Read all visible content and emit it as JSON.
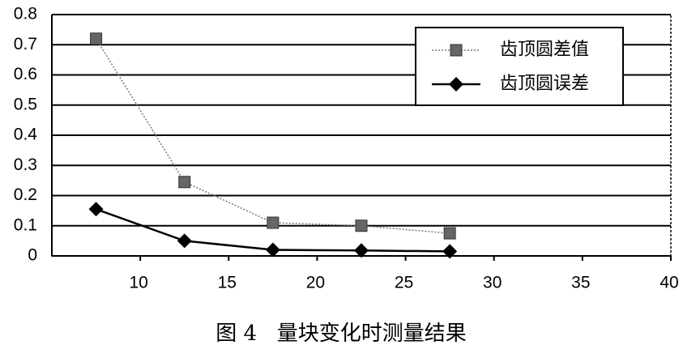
{
  "chart_data": {
    "type": "line",
    "caption": "图 4   量块变化时测量结果",
    "x": [
      7.5,
      12.5,
      17.5,
      22.5,
      27.5
    ],
    "series": [
      {
        "name": "齿顶圆差值",
        "color": "#777777",
        "values": [
          0.72,
          0.245,
          0.11,
          0.1,
          0.075
        ]
      },
      {
        "name": "齿顶圆误差",
        "color": "#000000",
        "values": [
          0.155,
          0.05,
          0.02,
          0.018,
          0.015
        ]
      }
    ],
    "xlim": [
      5,
      40
    ],
    "xticks": [
      10,
      15,
      20,
      25,
      30,
      35,
      40
    ],
    "ylim": [
      0,
      0.8
    ],
    "yticks": [
      0,
      0.1,
      0.2,
      0.3,
      0.4,
      0.5,
      0.6,
      0.7,
      0.8
    ],
    "grid": true,
    "legend": "upper right"
  }
}
